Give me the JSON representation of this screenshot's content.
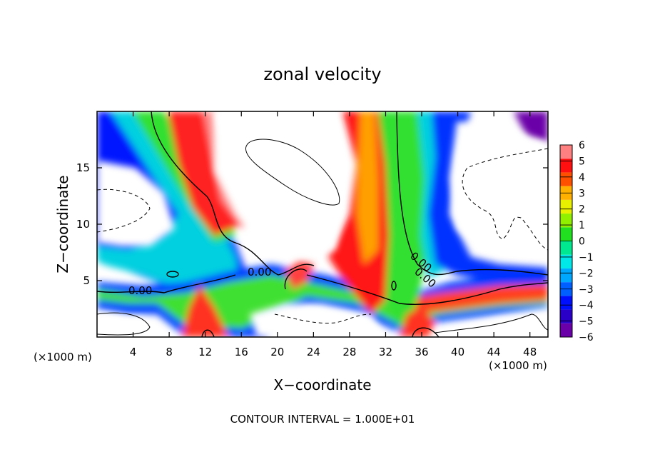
{
  "chart_data": {
    "type": "heatmap",
    "title": "zonal velocity",
    "xlabel": "X−coordinate",
    "ylabel": "Z−coordinate",
    "x_unit_left": "(×1000 m)",
    "x_unit_right": "(×1000 m)",
    "footer": "CONTOUR INTERVAL = 1.000E+01",
    "xlim": [
      0,
      50
    ],
    "ylim": [
      0,
      20
    ],
    "x_ticks": [
      4,
      8,
      12,
      16,
      20,
      24,
      28,
      32,
      36,
      40,
      44,
      48
    ],
    "y_ticks": [
      5,
      10,
      15
    ],
    "colorbar": {
      "levels": [
        -6,
        -5,
        -4,
        -3,
        -2,
        -1,
        0,
        1,
        2,
        3,
        4,
        5,
        6
      ],
      "tick_labels": [
        "−6",
        "−5",
        "−4",
        "−3",
        "−2",
        "−1",
        "0",
        "1",
        "2",
        "3",
        "4",
        "5",
        "6"
      ],
      "colors": [
        "#6a00a8",
        "#2a00c8",
        "#0010ff",
        "#0060ff",
        "#00a8ff",
        "#00e8e8",
        "#00e890",
        "#20e020",
        "#90f000",
        "#e8f000",
        "#ffb000",
        "#ff5000",
        "#ff1010",
        "#ff8080"
      ]
    },
    "contour_labels": [
      "0.00",
      "0.00",
      "0.00",
      "0.00"
    ]
  }
}
